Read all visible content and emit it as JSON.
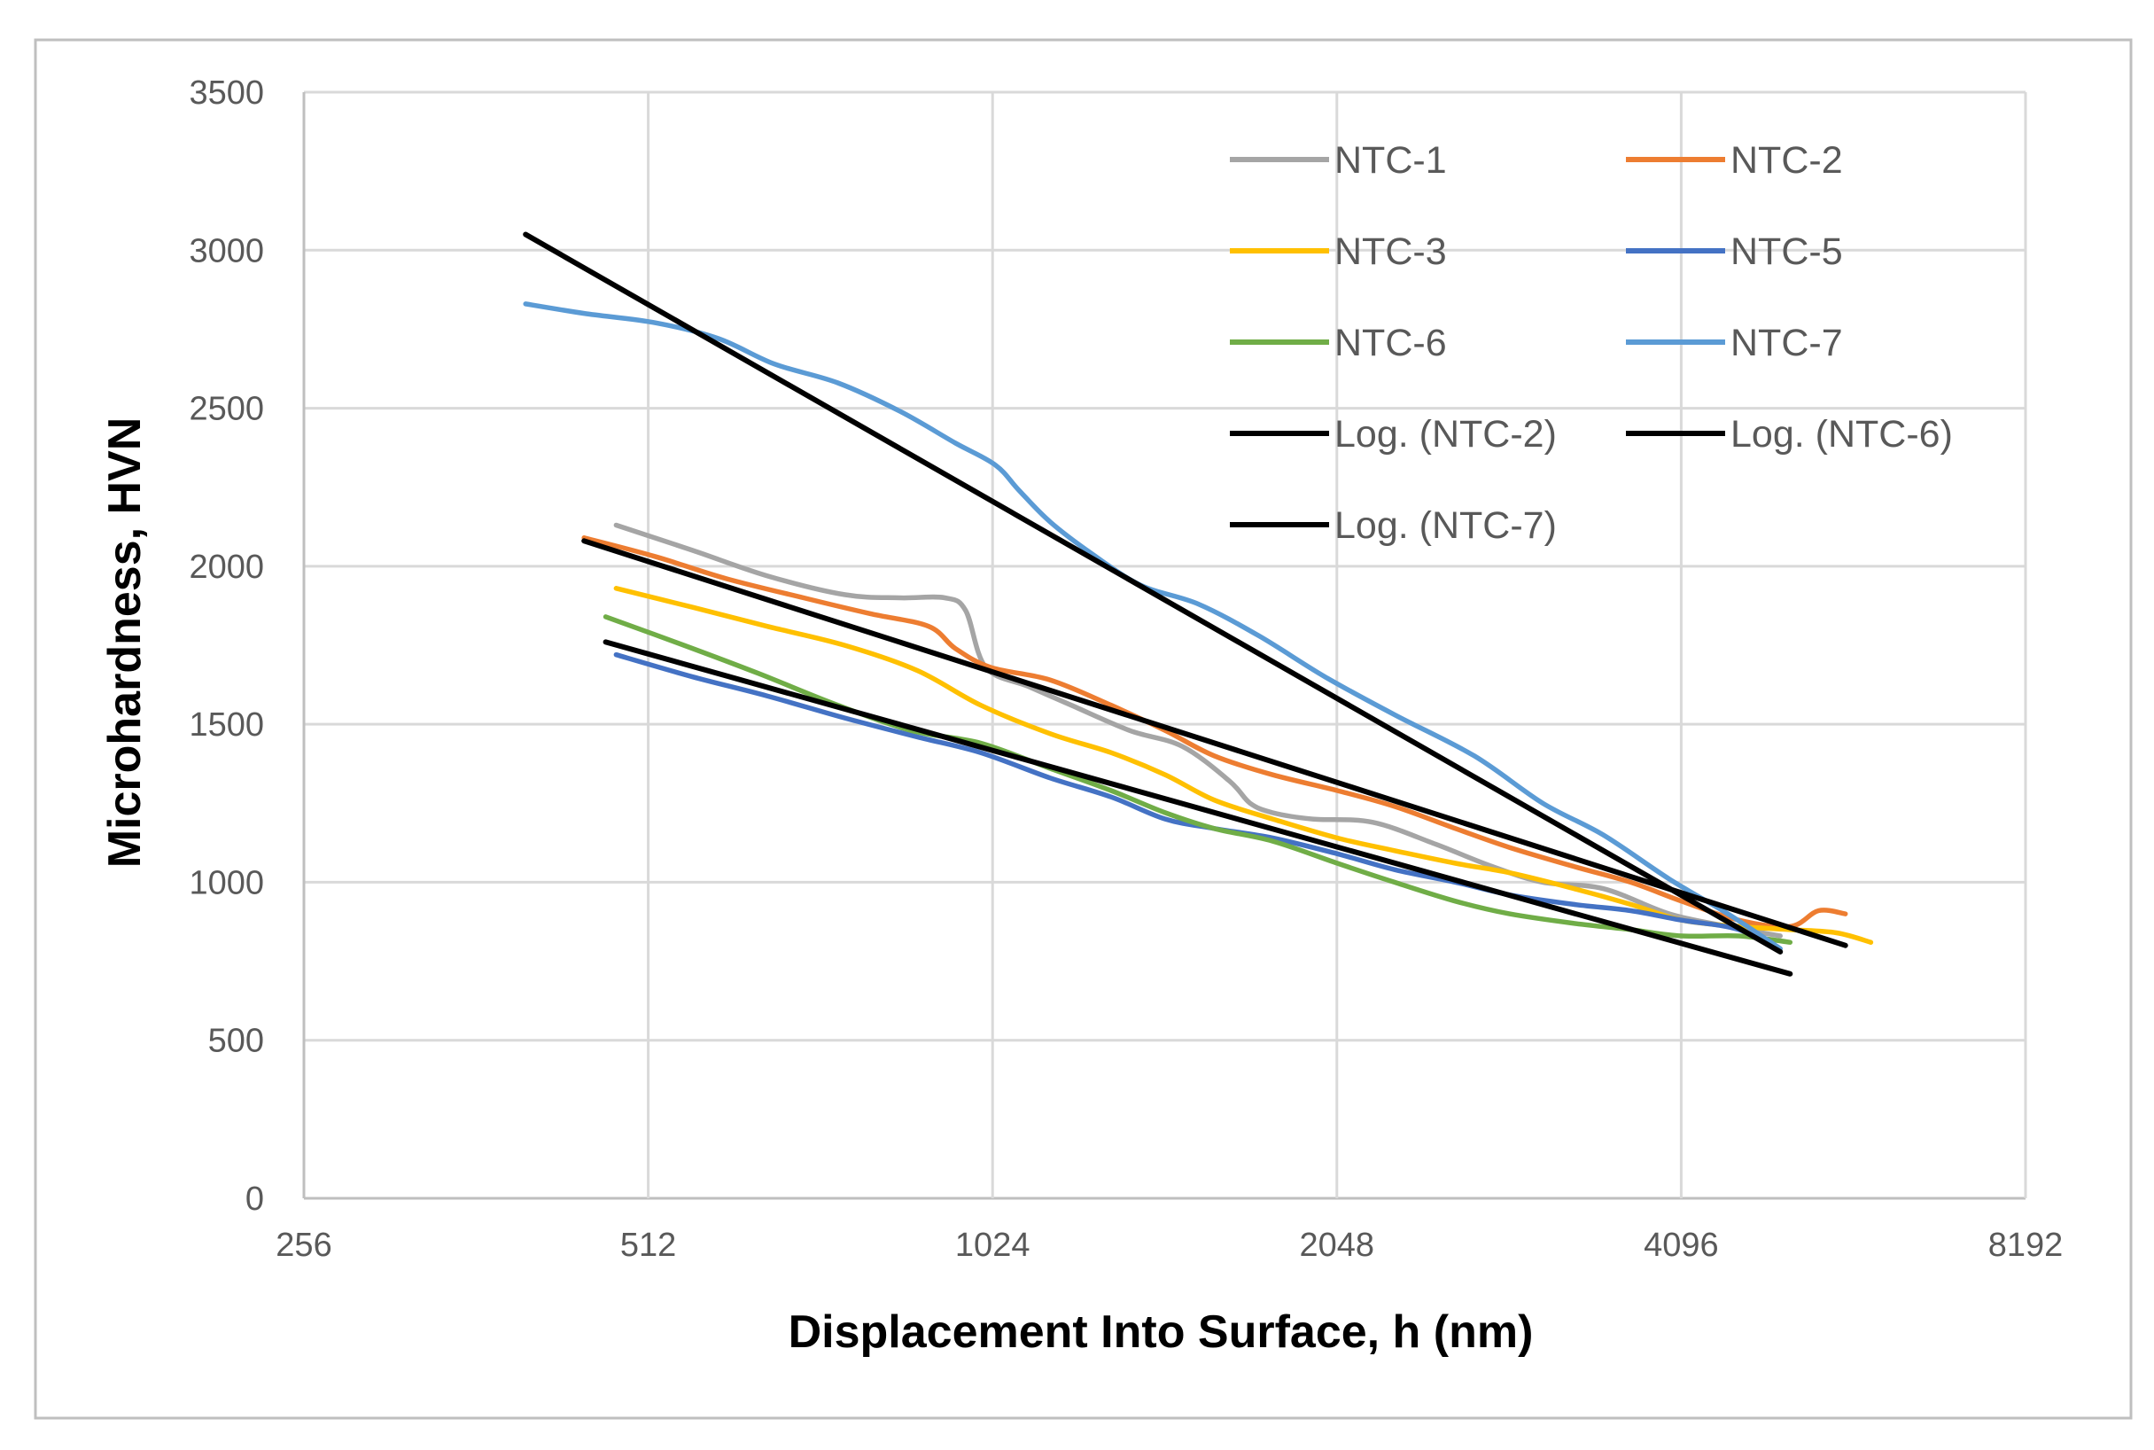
{
  "chart_data": {
    "type": "line",
    "title": "",
    "xlabel": "Displacement Into Surface, h (nm)",
    "ylabel": "Microhardness, HVN",
    "x_scale": "log2",
    "xlim": [
      256,
      8192
    ],
    "ylim": [
      0,
      3500
    ],
    "x_ticks": [
      256,
      512,
      1024,
      2048,
      4096,
      8192
    ],
    "y_ticks": [
      0,
      500,
      1000,
      1500,
      2000,
      2500,
      3000,
      3500
    ],
    "grid": true,
    "legend_position": "top-right",
    "series": [
      {
        "name": "NTC-1",
        "color": "#a5a5a5",
        "x": [
          480,
          560,
          650,
          760,
          850,
          930,
          970,
          1010,
          1100,
          1200,
          1350,
          1500,
          1650,
          1720,
          1800,
          1950,
          2200,
          2500,
          2800,
          3100,
          3500,
          4000,
          4500,
          5000
        ],
        "y": [
          2130,
          2050,
          1970,
          1910,
          1900,
          1900,
          1860,
          1680,
          1620,
          1560,
          1480,
          1430,
          1320,
          1250,
          1220,
          1200,
          1190,
          1120,
          1050,
          1000,
          980,
          900,
          860,
          830
        ]
      },
      {
        "name": "NTC-2",
        "color": "#ed7d31",
        "x": [
          450,
          520,
          600,
          700,
          800,
          900,
          950,
          1020,
          1150,
          1300,
          1450,
          1600,
          1800,
          2050,
          2300,
          2600,
          2900,
          3300,
          3700,
          4100,
          4600,
          5100,
          5400,
          5700
        ],
        "y": [
          2090,
          2030,
          1960,
          1900,
          1850,
          1810,
          1740,
          1680,
          1640,
          1560,
          1480,
          1400,
          1340,
          1290,
          1240,
          1170,
          1110,
          1050,
          1000,
          940,
          880,
          860,
          910,
          900
        ]
      },
      {
        "name": "NTC-3",
        "color": "#ffc000",
        "x": [
          480,
          560,
          650,
          760,
          880,
          1000,
          1150,
          1300,
          1450,
          1600,
          1800,
          2050,
          2300,
          2600,
          2900,
          3300,
          3700,
          4100,
          4600,
          5100,
          5600,
          6000
        ],
        "y": [
          1930,
          1870,
          1810,
          1750,
          1670,
          1560,
          1470,
          1410,
          1340,
          1260,
          1200,
          1140,
          1100,
          1060,
          1030,
          980,
          930,
          880,
          860,
          850,
          840,
          810
        ]
      },
      {
        "name": "NTC-5",
        "color": "#4472c4",
        "x": [
          480,
          560,
          650,
          760,
          880,
          1000,
          1150,
          1300,
          1450,
          1600,
          1800,
          2050,
          2300,
          2600,
          2900,
          3300,
          3700,
          4100,
          4600,
          5000
        ],
        "y": [
          1720,
          1650,
          1590,
          1520,
          1460,
          1410,
          1330,
          1270,
          1200,
          1170,
          1140,
          1090,
          1040,
          1000,
          960,
          930,
          910,
          880,
          850,
          780
        ]
      },
      {
        "name": "NTC-6",
        "color": "#70ad47",
        "x": [
          470,
          550,
          640,
          750,
          870,
          1000,
          1150,
          1300,
          1450,
          1600,
          1800,
          2050,
          2300,
          2600,
          2900,
          3300,
          3700,
          4100,
          4600,
          5100
        ],
        "y": [
          1840,
          1750,
          1660,
          1560,
          1480,
          1440,
          1360,
          1290,
          1220,
          1170,
          1130,
          1060,
          1000,
          940,
          900,
          870,
          850,
          830,
          830,
          810
        ]
      },
      {
        "name": "NTC-7",
        "color": "#5b9bd5",
        "x": [
          400,
          450,
          520,
          590,
          660,
          750,
          850,
          950,
          1030,
          1080,
          1150,
          1250,
          1380,
          1550,
          1750,
          2000,
          2300,
          2700,
          3100,
          3500,
          4000,
          4500,
          5000
        ],
        "y": [
          2830,
          2800,
          2770,
          2720,
          2640,
          2580,
          2490,
          2390,
          2320,
          2240,
          2140,
          2040,
          1940,
          1880,
          1780,
          1650,
          1530,
          1400,
          1250,
          1150,
          1010,
          900,
          790
        ]
      },
      {
        "name": "Log. (NTC-2)",
        "color": "#000000",
        "x": [
          450,
          5700
        ],
        "y": [
          2080,
          800
        ]
      },
      {
        "name": "Log. (NTC-6)",
        "color": "#000000",
        "x": [
          470,
          5100
        ],
        "y": [
          1760,
          710
        ]
      },
      {
        "name": "Log. (NTC-7)",
        "color": "#000000",
        "x": [
          400,
          5000
        ],
        "y": [
          3050,
          780
        ]
      }
    ]
  }
}
